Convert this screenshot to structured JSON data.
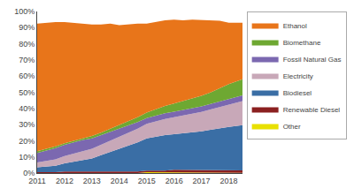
{
  "chart_data": {
    "type": "area",
    "stacked": true,
    "x": [
      2011,
      2011.33,
      2011.67,
      2012,
      2012.33,
      2012.67,
      2013,
      2013.33,
      2013.67,
      2014,
      2014.33,
      2014.67,
      2015,
      2015.33,
      2015.67,
      2016,
      2016.33,
      2016.67,
      2017,
      2017.33,
      2017.67,
      2018,
      2018.5
    ],
    "series": [
      {
        "name": "Other",
        "color": "#E8E000",
        "values": [
          0,
          0,
          0,
          0,
          0,
          0,
          0,
          0,
          0,
          0,
          0,
          0,
          0.5,
          0.5,
          0.5,
          0.5,
          0.5,
          0.5,
          0.3,
          0.3,
          0.3,
          0.1,
          0.1
        ]
      },
      {
        "name": "Renewable Diesel",
        "color": "#8B2020",
        "values": [
          0.5,
          0.5,
          0.5,
          1,
          1,
          1,
          1,
          1,
          1,
          1,
          1,
          1,
          1,
          1,
          1,
          1.5,
          1.5,
          1.5,
          1.5,
          1.5,
          1.5,
          1.5,
          1.5
        ]
      },
      {
        "name": "Biodiesel",
        "color": "#3A6EA5",
        "values": [
          3,
          3.5,
          4,
          5,
          6,
          7,
          8,
          10,
          12,
          14,
          16,
          18,
          20,
          21,
          22,
          22,
          22.5,
          23,
          24,
          25,
          26,
          27,
          28
        ]
      },
      {
        "name": "Electricity",
        "color": "#C8A8B8",
        "values": [
          3,
          3.5,
          4,
          4.5,
          5,
          5.5,
          6,
          6.5,
          7,
          7.5,
          8,
          8.5,
          9,
          9.5,
          10,
          10.5,
          11,
          11.5,
          12,
          12.5,
          13,
          14,
          15
        ]
      },
      {
        "name": "Fossil Natural Gas",
        "color": "#7B68B0",
        "values": [
          6,
          6.5,
          7,
          7,
          7,
          7,
          6.5,
          6,
          5.5,
          5,
          4.5,
          4,
          3.5,
          3.5,
          3.5,
          3.5,
          3.5,
          3.5,
          3.5,
          3.5,
          3.5,
          3.5,
          3.5
        ]
      },
      {
        "name": "Biomethane",
        "color": "#6EA832",
        "values": [
          1,
          1,
          1,
          1,
          1,
          1,
          1.5,
          1.5,
          2,
          2,
          2.5,
          3,
          3.5,
          4,
          4.5,
          5,
          5.5,
          6,
          6.5,
          7,
          8,
          9,
          10
        ]
      },
      {
        "name": "Ethanol",
        "color": "#E8751A",
        "values": [
          79,
          78,
          77,
          75,
          73,
          71,
          69,
          67,
          65,
          62,
          60,
          58,
          55,
          54,
          53,
          52,
          50,
          49,
          47,
          45,
          42,
          38,
          35
        ]
      }
    ],
    "xlim": [
      2011,
      2018.5
    ],
    "xticks": [
      2011,
      2012,
      2013,
      2014,
      2015,
      2016,
      2017,
      2018
    ],
    "ylim": [
      0,
      100
    ],
    "yticks": [
      {
        "value": 0,
        "label": "0%"
      },
      {
        "value": 10,
        "label": "10%"
      },
      {
        "value": 20,
        "label": "20%"
      },
      {
        "value": 30,
        "label": "30%"
      },
      {
        "value": 40,
        "label": "40%"
      },
      {
        "value": 50,
        "label": "50%"
      },
      {
        "value": 60,
        "label": "60%"
      },
      {
        "value": 70,
        "label": "70%"
      },
      {
        "value": 80,
        "label": "80%"
      },
      {
        "value": 90,
        "label": "90%"
      },
      {
        "value": 100,
        "label": "100%"
      }
    ],
    "grid": false,
    "legend": "right"
  }
}
